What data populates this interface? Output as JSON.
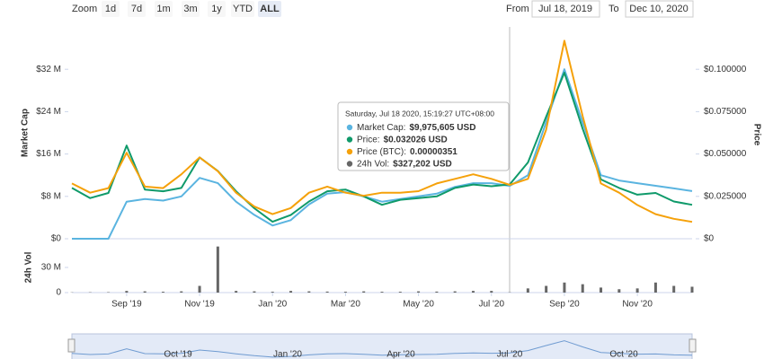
{
  "toolbar": {
    "zoom_label": "Zoom",
    "buttons": [
      "1d",
      "7d",
      "1m",
      "3m",
      "1y",
      "YTD",
      "ALL"
    ],
    "active": "ALL",
    "from_label": "From",
    "from": "Jul 18, 2019",
    "to_label": "To",
    "to": "Dec 10, 2020"
  },
  "chart_data": {
    "type": "line",
    "categories": [
      null,
      null,
      null,
      "Sep '19",
      null,
      null,
      null,
      "Nov '19",
      null,
      null,
      null,
      "Jan '20",
      null,
      null,
      null,
      "Mar '20",
      null,
      null,
      null,
      "May '20",
      null,
      null,
      null,
      "Jul '20",
      null,
      null,
      null,
      "Sep '20",
      null,
      null,
      null,
      "Nov '20",
      null,
      null,
      null
    ],
    "ylabel": "Market Cap",
    "y2label": "Price",
    "y3label": "24h Vol",
    "ylim": [
      0,
      40000000
    ],
    "yticks": [
      {
        "value": 0,
        "label": "$0"
      },
      {
        "value": 8000000,
        "label": "$8 M"
      },
      {
        "value": 16000000,
        "label": "$16 M"
      },
      {
        "value": 24000000,
        "label": "$24 M"
      },
      {
        "value": 32000000,
        "label": "$32 M"
      }
    ],
    "y2lim": [
      0,
      0.125
    ],
    "y2ticks": [
      {
        "value": 0,
        "label": "$0"
      },
      {
        "value": 0.025,
        "label": "$0.025000"
      },
      {
        "value": 0.05,
        "label": "$0.050000"
      },
      {
        "value": 0.075,
        "label": "$0.075000"
      },
      {
        "value": 0.1,
        "label": "$0.100000"
      }
    ],
    "y3lim": [
      0,
      60000000
    ],
    "y3ticks": [
      0,
      {
        "value": 30000000,
        "label": "30 M"
      }
    ],
    "y4lim": [
      0,
      1.38e-05
    ],
    "grid": false,
    "series": [
      {
        "type": "line",
        "axis": "y",
        "color": "#5ab4e0",
        "values": [
          0,
          0,
          0,
          7000000,
          7500000,
          7200000,
          8000000,
          11500000,
          10500000,
          7000000,
          4500000,
          2500000,
          3500000,
          6500000,
          8500000,
          8800000,
          8000000,
          7000000,
          7500000,
          8000000,
          8500000,
          9800000,
          10500000,
          10500000,
          9975605,
          12000000,
          22000000,
          32000000,
          22000000,
          12000000,
          11000000,
          10500000,
          10000000,
          9500000,
          9000000
        ]
      },
      {
        "type": "line",
        "axis": "y2",
        "color": "#0f9a6a",
        "values": [
          0.03,
          0.024,
          0.027,
          0.055,
          0.029,
          0.028,
          0.03,
          0.048,
          0.04,
          0.028,
          0.018,
          0.01,
          0.014,
          0.022,
          0.028,
          0.029,
          0.025,
          0.02,
          0.023,
          0.024,
          0.025,
          0.03,
          0.032,
          0.031,
          0.032026,
          0.045,
          0.072,
          0.098,
          0.065,
          0.035,
          0.03,
          0.026,
          0.027,
          0.022,
          0.02
        ]
      },
      {
        "type": "line",
        "axis": "y4",
        "color": "#f5a10a",
        "values": [
          3.6e-06,
          3e-06,
          3.3e-06,
          5.6e-06,
          3.4e-06,
          3.3e-06,
          4.2e-06,
          5.3e-06,
          4.4e-06,
          3e-06,
          2.1e-06,
          1.6e-06,
          2e-06,
          3e-06,
          3.4e-06,
          3e-06,
          2.8e-06,
          3e-06,
          3e-06,
          3.1e-06,
          3.6e-06,
          3.9e-06,
          4.2e-06,
          3.9e-06,
          3.51e-06,
          3.9e-06,
          7.1e-06,
          1.29e-05,
          8e-06,
          3.6e-06,
          3e-06,
          2.2e-06,
          1.6e-06,
          1.3e-06,
          1.1e-06
        ]
      },
      {
        "type": "bar",
        "axis": "y3",
        "color": "#666666",
        "values": [
          300000,
          400000,
          500000,
          2000000,
          1500000,
          1000000,
          1500000,
          8000000,
          55000000,
          2000000,
          1500000,
          1000000,
          2000000,
          1500000,
          1200000,
          1000000,
          1500000,
          1000000,
          1000000,
          1500000,
          1200000,
          1500000,
          2000000,
          2000000,
          327202,
          5000000,
          8000000,
          12000000,
          10000000,
          6000000,
          4000000,
          5000000,
          12000000,
          8000000,
          7000000
        ]
      }
    ],
    "tooltip": {
      "title": "Saturday, Jul 18 2020, 15:19:27 UTC+08:00",
      "lines": [
        {
          "label": "Market Cap:",
          "value": "$9,975,605 USD"
        },
        {
          "label": "Price:",
          "value": "$0.032026 USD"
        },
        {
          "label": "Price (BTC):",
          "value": "0.00000351"
        },
        {
          "label": "24h Vol:",
          "value": "$327,202 USD"
        }
      ]
    },
    "navigator": {
      "labels": [
        "Oct '19",
        "Jan '20",
        "Apr '20",
        "Jul '20",
        "Oct '20"
      ]
    }
  }
}
